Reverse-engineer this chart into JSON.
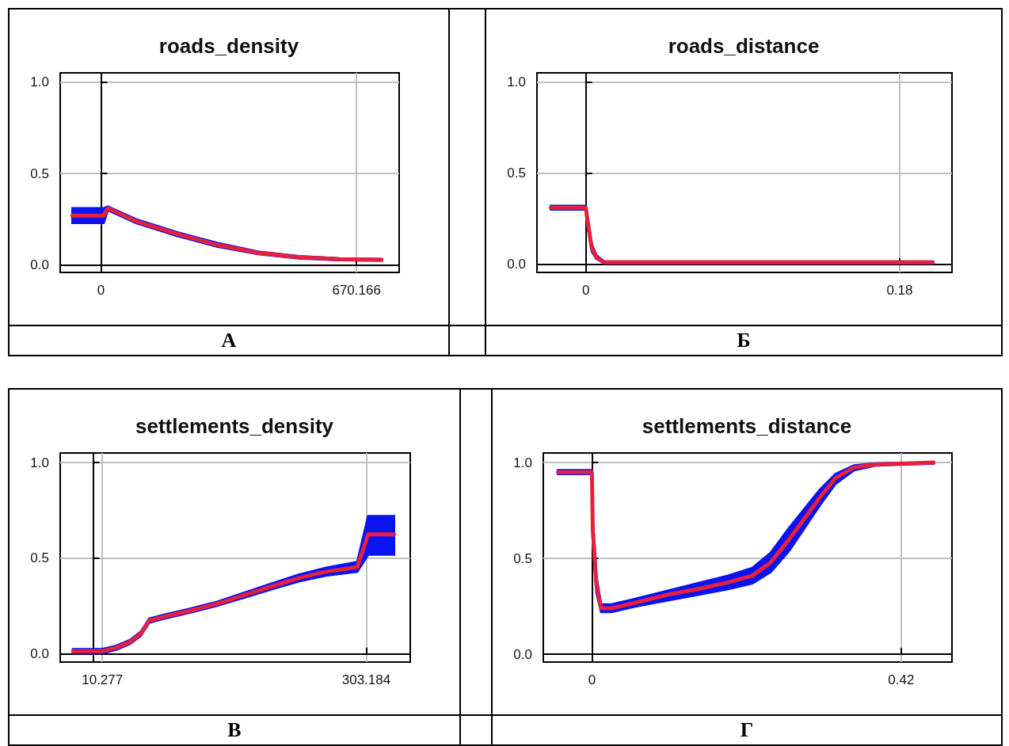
{
  "chart_data": [
    {
      "type": "line",
      "title": "roads_density",
      "annotations": [
        "А"
      ],
      "xlim": [
        -107,
        782
      ],
      "xticks": [
        0,
        670.166
      ],
      "ylim": [
        -0.04,
        1.05
      ],
      "yticks": [
        {
          "value": 0,
          "label": "0.0"
        },
        {
          "value": 0.5,
          "label": "0.5"
        },
        {
          "value": 1,
          "label": "1.0"
        }
      ],
      "grid": true,
      "marker": "none",
      "series": [
        {
          "color": "#e8203c",
          "x": [
            -75,
            0,
            7,
            18,
            92,
            199,
            306,
            412,
            519,
            625,
            736
          ],
          "values": [
            0.27,
            0.27,
            0.27,
            0.31,
            0.24,
            0.17,
            0.11,
            0.067,
            0.043,
            0.032,
            0.029
          ],
          "lower": [
            0.23,
            0.23,
            0.23,
            0.3,
            0.23,
            0.16,
            0.1,
            0.06,
            0.037,
            0.027,
            0.025
          ],
          "upper": [
            0.31,
            0.31,
            0.31,
            0.32,
            0.25,
            0.18,
            0.12,
            0.074,
            0.049,
            0.037,
            0.033
          ]
        }
      ]
    },
    {
      "type": "line",
      "title": "roads_distance",
      "annotations": [
        "Б"
      ],
      "xlim": [
        -0.028,
        0.21
      ],
      "xticks": [
        0,
        0.18
      ],
      "ylim": [
        -0.045,
        1.05
      ],
      "yticks": [
        {
          "value": 0,
          "label": "0.0"
        },
        {
          "value": 0.5,
          "label": "0.5"
        },
        {
          "value": 1,
          "label": "1.0"
        }
      ],
      "grid": true,
      "marker": "none",
      "series": [
        {
          "color": "#e8203c",
          "x": [
            -0.02,
            0,
            0.0016,
            0.0034,
            0.006,
            0.0105,
            0.05,
            0.199
          ],
          "values": [
            0.31,
            0.31,
            0.2,
            0.09,
            0.04,
            0.01,
            0.01,
            0.01
          ],
          "lower": [
            0.3,
            0.3,
            0.18,
            0.07,
            0.03,
            0.005,
            0.005,
            0.005
          ],
          "upper": [
            0.32,
            0.32,
            0.22,
            0.11,
            0.05,
            0.015,
            0.015,
            0.015
          ]
        }
      ]
    },
    {
      "type": "line",
      "title": "settlements_density",
      "annotations": [
        "В"
      ],
      "xlim": [
        -36.5,
        352
      ],
      "xticks": [
        10.277,
        303.184
      ],
      "ylim": [
        -0.042,
        1.05
      ],
      "yticks": [
        {
          "value": 0,
          "label": "0.0"
        },
        {
          "value": 0.5,
          "label": "0.5"
        },
        {
          "value": 1,
          "label": "1.0"
        }
      ],
      "grid": true,
      "marker": "none",
      "series": [
        {
          "color": "#e8203c",
          "x": [
            -22.3,
            10.277,
            26,
            41.1,
            53.2,
            62.2,
            77.3,
            107.5,
            137.7,
            167.9,
            198.1,
            228.3,
            258.5,
            293.2,
            305.3,
            334
          ],
          "values": [
            0.015,
            0.015,
            0.033,
            0.063,
            0.107,
            0.174,
            0.193,
            0.226,
            0.263,
            0.308,
            0.353,
            0.397,
            0.43,
            0.454,
            0.625,
            0.625
          ],
          "lower": [
            0.005,
            0.005,
            0.023,
            0.053,
            0.097,
            0.164,
            0.183,
            0.216,
            0.253,
            0.295,
            0.338,
            0.38,
            0.41,
            0.43,
            0.52,
            0.52
          ],
          "upper": [
            0.025,
            0.025,
            0.043,
            0.073,
            0.117,
            0.184,
            0.203,
            0.236,
            0.273,
            0.32,
            0.368,
            0.414,
            0.45,
            0.48,
            0.72,
            0.72
          ]
        }
      ]
    },
    {
      "type": "line",
      "title": "settlements_distance",
      "annotations": [
        "Г"
      ],
      "xlim": [
        -0.066,
        0.489
      ],
      "xticks": [
        0,
        0.42
      ],
      "ylim": [
        -0.041,
        1.05
      ],
      "yticks": [
        {
          "value": 0,
          "label": "0.0"
        },
        {
          "value": 0.5,
          "label": "0.5"
        },
        {
          "value": 1,
          "label": "1.0"
        }
      ],
      "grid": true,
      "marker": "none",
      "series": [
        {
          "color": "#e8203c",
          "x": [
            -0.046,
            0,
            0.0012,
            0.0062,
            0.0125,
            0.027,
            0.06,
            0.102,
            0.144,
            0.185,
            0.218,
            0.243,
            0.268,
            0.289,
            0.31,
            0.331,
            0.356,
            0.385,
            0.464
          ],
          "values": [
            0.95,
            0.95,
            0.65,
            0.36,
            0.24,
            0.24,
            0.27,
            0.31,
            0.34,
            0.375,
            0.41,
            0.48,
            0.6,
            0.71,
            0.82,
            0.92,
            0.975,
            0.99,
            1
          ],
          "lower": [
            0.94,
            0.94,
            0.6,
            0.32,
            0.22,
            0.22,
            0.25,
            0.28,
            0.31,
            0.34,
            0.37,
            0.43,
            0.54,
            0.66,
            0.78,
            0.89,
            0.96,
            0.985,
            0.995
          ],
          "upper": [
            0.96,
            0.96,
            0.7,
            0.4,
            0.26,
            0.26,
            0.29,
            0.33,
            0.37,
            0.41,
            0.45,
            0.53,
            0.66,
            0.76,
            0.86,
            0.94,
            0.985,
            0.995,
            1
          ]
        }
      ]
    }
  ]
}
